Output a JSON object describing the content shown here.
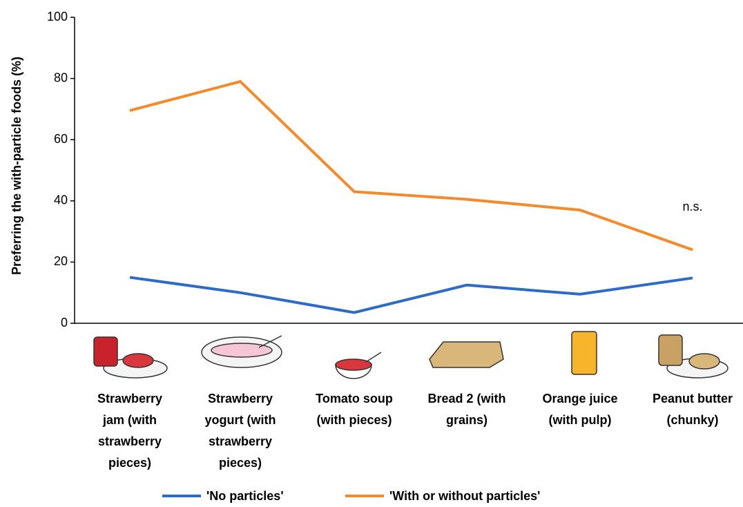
{
  "chart_data": {
    "type": "line",
    "y_label": "Preferring the with-particle foods (%)",
    "categories": [
      "Strawberry jam (with strawberry pieces)",
      "Strawberry yogurt (with strawberry pieces)",
      "Tomato soup (with pieces)",
      "Bread 2 (with grains)",
      "Orange juice (with pulp)",
      "Peanut butter (chunky)"
    ],
    "series": [
      {
        "name": "'No particles'",
        "color": "#2e6bc6",
        "values": [
          15,
          10,
          3.5,
          12.5,
          9.5,
          14.8
        ]
      },
      {
        "name": "'With or without particles'",
        "color": "#f28a2e",
        "values": [
          69.5,
          79,
          43,
          40.5,
          37,
          24
        ]
      }
    ],
    "annotation": "n.s.",
    "ylim": [
      0,
      100
    ],
    "yticks": [
      0,
      20,
      40,
      60,
      80,
      100
    ],
    "legend": "bottom"
  }
}
